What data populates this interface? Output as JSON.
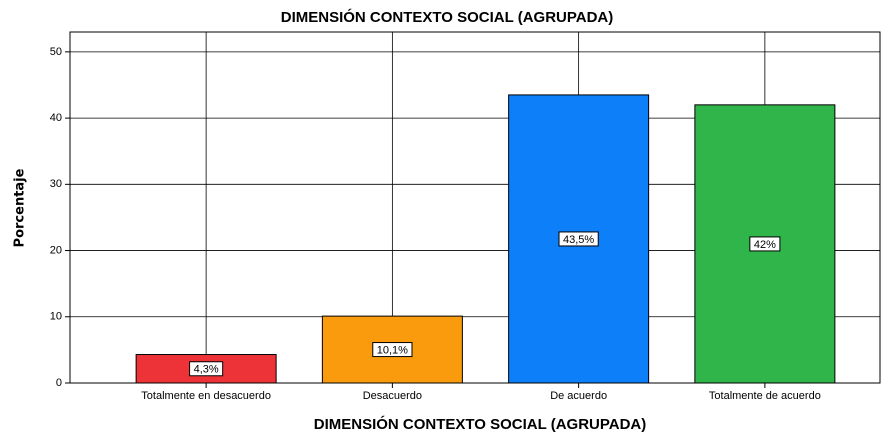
{
  "chart_data": {
    "type": "bar",
    "title": "DIMENSIÓN CONTEXTO SOCIAL (AGRUPADA)",
    "x_label": "DIMENSIÓN CONTEXTO SOCIAL (AGRUPADA)",
    "y_label": "Porcentaje",
    "categories": [
      "Totalmente en desacuerdo",
      "Desacuerdo",
      "De acuerdo",
      "Totalmente de acuerdo"
    ],
    "values": [
      4.3,
      10.1,
      43.5,
      42
    ],
    "value_labels": [
      "4,3%",
      "10,1%",
      "43,5%",
      "42%"
    ],
    "colors": [
      "#ee3338",
      "#f99b0c",
      "#0d7ff8",
      "#2fb54a"
    ],
    "ylim": [
      0,
      53
    ],
    "yticks": [
      0,
      10,
      20,
      30,
      40,
      50
    ],
    "grid": true
  }
}
